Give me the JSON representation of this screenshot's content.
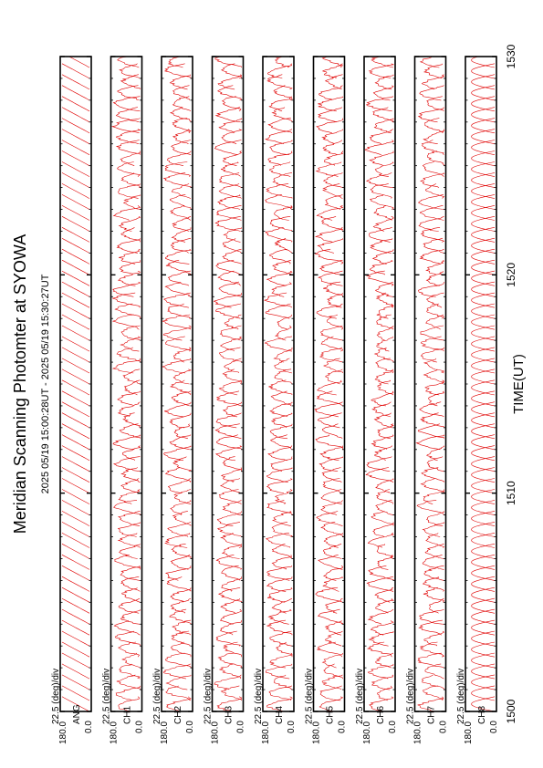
{
  "title": "Meridian Scanning Photomter at SYOWA",
  "period": "2025 05/19 15:00:28UT - 2025 05/19 15:30:27UT",
  "chart_data": {
    "type": "line",
    "xlabel": "TIME(UT)",
    "xlim": [
      1500,
      1530
    ],
    "x_ticks": [
      "1500",
      "1510",
      "1520",
      "1530"
    ],
    "panels": [
      {
        "channel": "ANG",
        "scale_label": "22.5 (deg)/div",
        "y_max_label": "180.0",
        "y_min_label": "0.0",
        "style": "ramp"
      },
      {
        "channel": "CH1",
        "scale_label": "22.5 (deg)/div",
        "y_max_label": "180.0",
        "y_min_label": "0.0",
        "style": "scan"
      },
      {
        "channel": "CH2",
        "scale_label": "22.5 (deg)/div",
        "y_max_label": "180.0",
        "y_min_label": "0.0",
        "style": "scan"
      },
      {
        "channel": "CH3",
        "scale_label": "22.5 (deg)/div",
        "y_max_label": "180.0",
        "y_min_label": "0.0",
        "style": "scan"
      },
      {
        "channel": "CH4",
        "scale_label": "22.5 (deg)/div",
        "y_max_label": "180.0",
        "y_min_label": "0.0",
        "style": "scan"
      },
      {
        "channel": "CH5",
        "scale_label": "22.5 (deg)/div",
        "y_max_label": "180.0",
        "y_min_label": "0.0",
        "style": "scan"
      },
      {
        "channel": "CH6",
        "scale_label": "22.5 (deg)/div",
        "y_max_label": "180.0",
        "y_min_label": "0.0",
        "style": "scan"
      },
      {
        "channel": "CH7",
        "scale_label": "22.5 (deg)/div",
        "y_max_label": "180.0",
        "y_min_label": "0.0",
        "style": "scan"
      },
      {
        "channel": "CH8",
        "scale_label": "22.5 (deg)/div",
        "y_max_label": "180.0",
        "y_min_label": "0.0",
        "style": "smooth"
      }
    ],
    "scans_per_panel": 60,
    "line_color": "#e00000",
    "grid": false
  }
}
